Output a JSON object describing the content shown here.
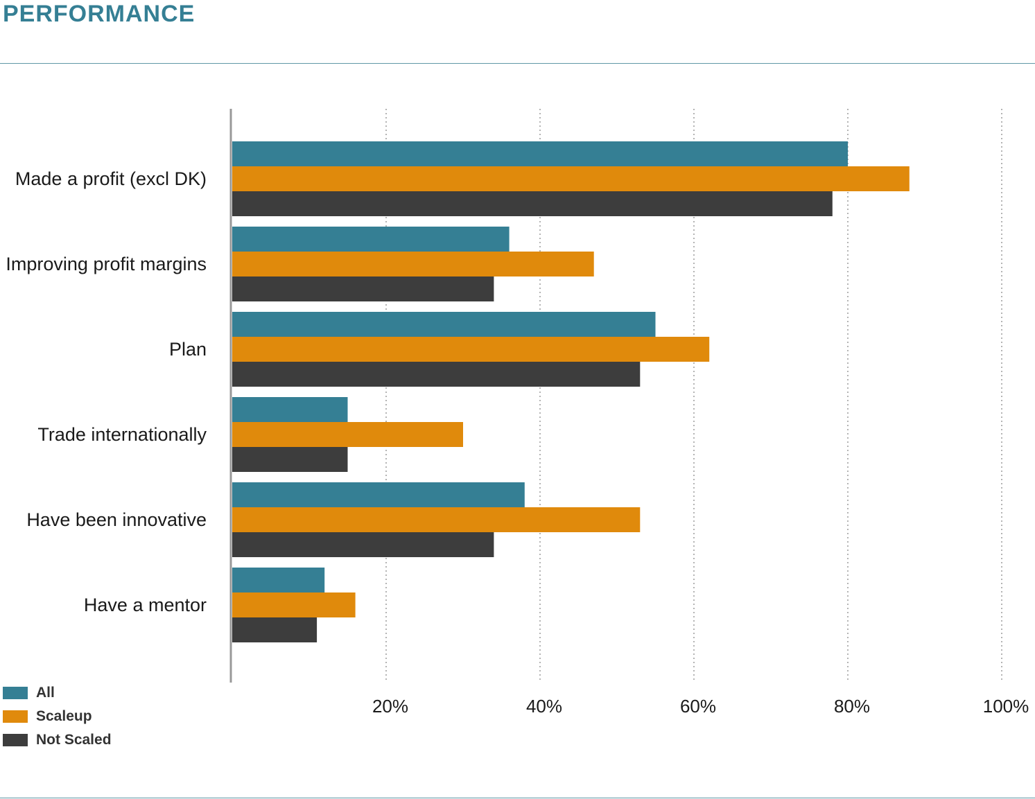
{
  "header": {
    "title": "PERFORMANCE"
  },
  "colors": {
    "all": "#357f94",
    "scaleup": "#e08a0c",
    "not_scaled": "#3d3d3d",
    "title": "#357f94",
    "rule": "#5f98a6"
  },
  "chart_data": {
    "type": "bar",
    "orientation": "horizontal",
    "categories": [
      "Made a profit (excl DK)",
      "Improving profit margins",
      "Plan",
      "Trade internationally",
      "Have been innovative",
      "Have a mentor"
    ],
    "series": [
      {
        "name": "All",
        "color": "#357f94",
        "values": [
          80,
          36,
          55,
          15,
          38,
          12
        ]
      },
      {
        "name": "Scaleup",
        "color": "#e08a0c",
        "values": [
          88,
          47,
          62,
          30,
          53,
          16
        ]
      },
      {
        "name": "Not Scaled",
        "color": "#3d3d3d",
        "values": [
          78,
          34,
          53,
          15,
          34,
          11
        ]
      }
    ],
    "x_ticks": [
      "20%",
      "40%",
      "60%",
      "80%",
      "100%"
    ],
    "tick_values": [
      20,
      40,
      60,
      80,
      100
    ],
    "xlim": [
      0,
      100
    ],
    "grid": "dotted vertical",
    "legend_position": "bottom-left"
  }
}
